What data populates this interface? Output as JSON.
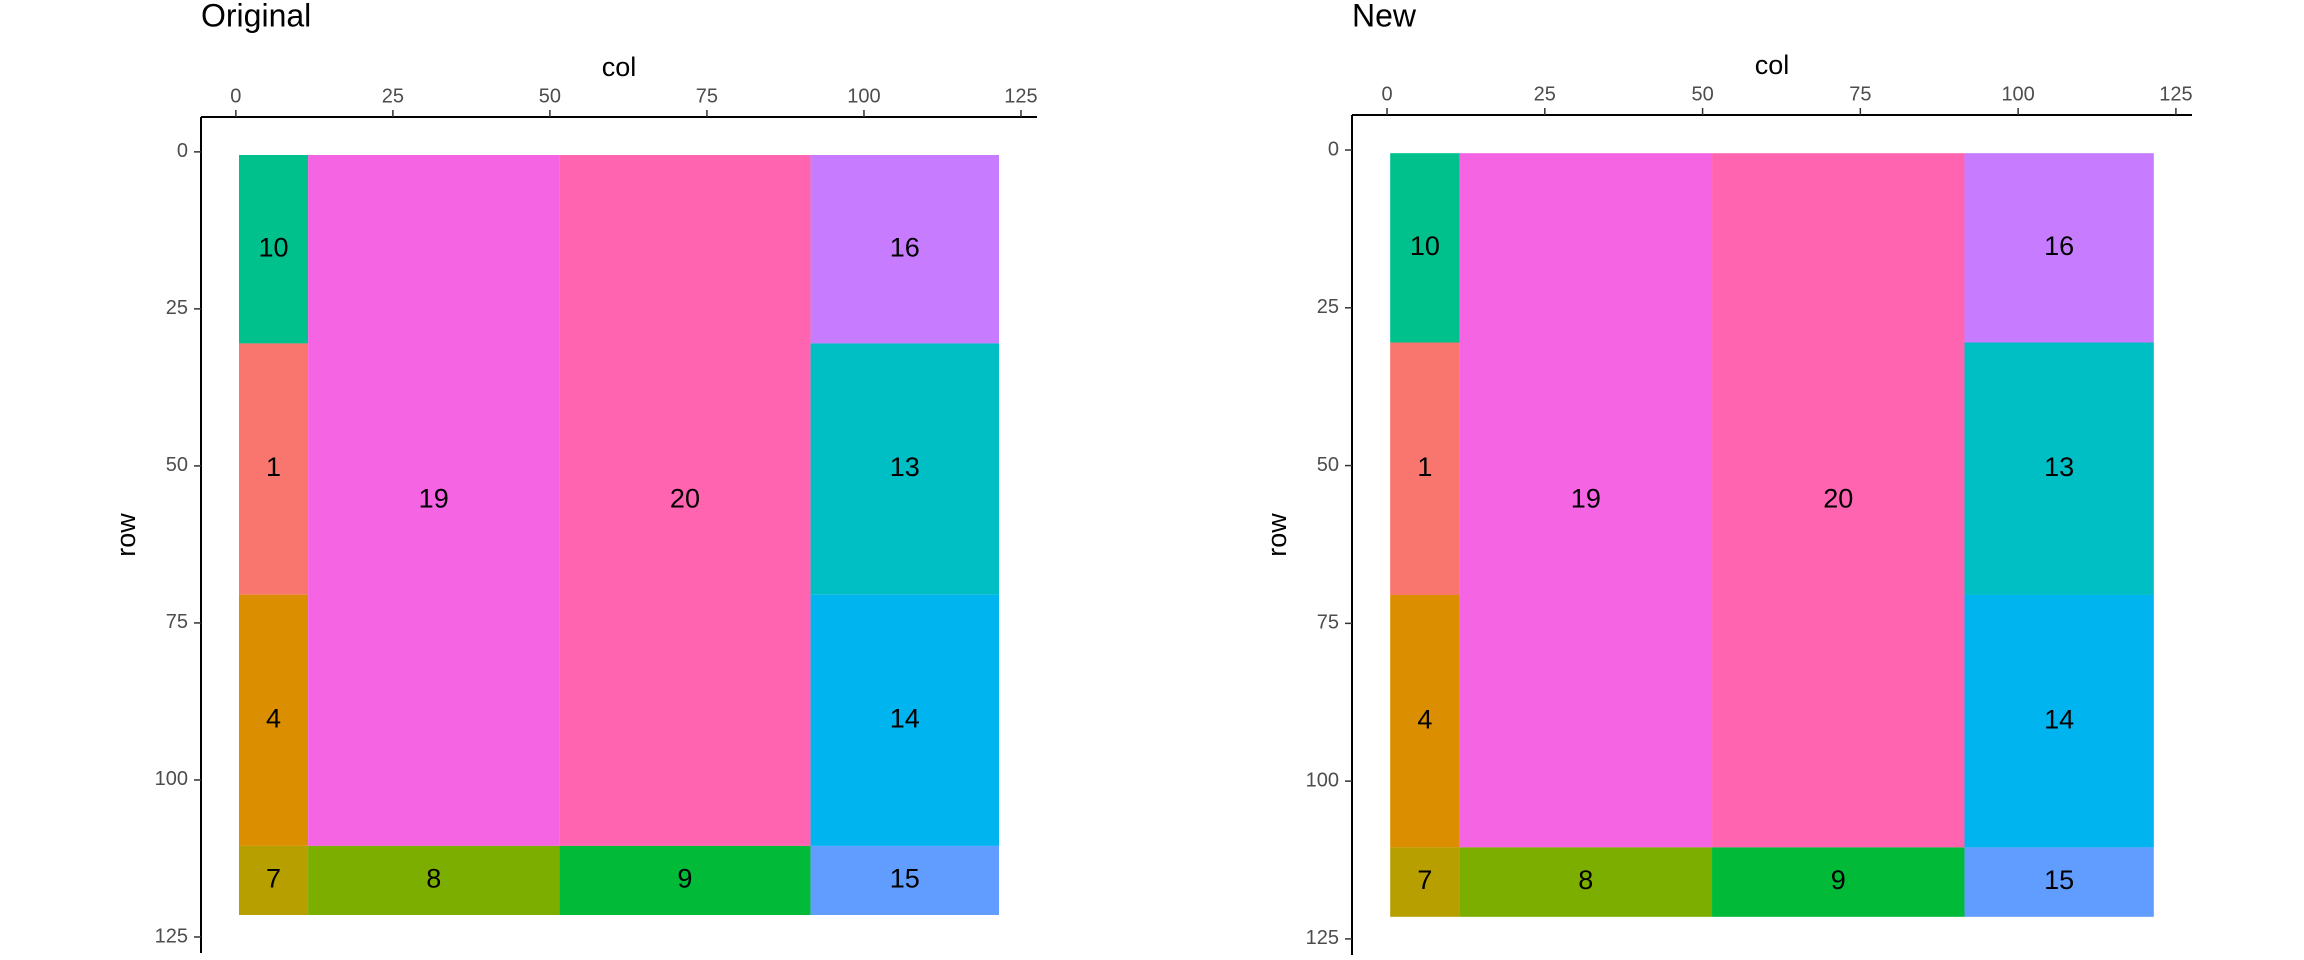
{
  "chart_data": [
    {
      "type": "tile",
      "title": "Original",
      "xlabel": "col",
      "ylabel": "row",
      "x_axis_position": "top",
      "y_reversed": true,
      "xlim": [
        -5.55,
        127.55
      ],
      "ylim": [
        -5.55,
        127.55
      ],
      "xticks": [
        0,
        25,
        50,
        75,
        100,
        125
      ],
      "yticks": [
        0,
        25,
        50,
        75,
        100,
        125
      ],
      "tiles": [
        {
          "label": 10,
          "xmin": 0.5,
          "xmax": 11.5,
          "ymin": 0.5,
          "ymax": 30.5,
          "color": "#00C08B"
        },
        {
          "label": 1,
          "xmin": 0.5,
          "xmax": 11.5,
          "ymin": 30.5,
          "ymax": 70.5,
          "color": "#F8766D"
        },
        {
          "label": 4,
          "xmin": 0.5,
          "xmax": 11.5,
          "ymin": 70.5,
          "ymax": 110.5,
          "color": "#DB8E00"
        },
        {
          "label": 7,
          "xmin": 0.5,
          "xmax": 11.5,
          "ymin": 110.5,
          "ymax": 121.5,
          "color": "#B79F00"
        },
        {
          "label": 19,
          "xmin": 11.5,
          "xmax": 51.5,
          "ymin": 0.5,
          "ymax": 110.5,
          "color": "#F564E3"
        },
        {
          "label": 20,
          "xmin": 51.5,
          "xmax": 91.5,
          "ymin": 0.5,
          "ymax": 110.5,
          "color": "#FF64B0"
        },
        {
          "label": 8,
          "xmin": 11.5,
          "xmax": 51.5,
          "ymin": 110.5,
          "ymax": 121.5,
          "color": "#7CAE00"
        },
        {
          "label": 9,
          "xmin": 51.5,
          "xmax": 91.5,
          "ymin": 110.5,
          "ymax": 121.5,
          "color": "#00BA38"
        },
        {
          "label": 16,
          "xmin": 91.5,
          "xmax": 121.5,
          "ymin": 0.5,
          "ymax": 30.5,
          "color": "#C77CFF"
        },
        {
          "label": 13,
          "xmin": 91.5,
          "xmax": 121.5,
          "ymin": 30.5,
          "ymax": 70.5,
          "color": "#00BFC4"
        },
        {
          "label": 14,
          "xmin": 91.5,
          "xmax": 121.5,
          "ymin": 70.5,
          "ymax": 110.5,
          "color": "#00B4EF"
        },
        {
          "label": 15,
          "xmin": 91.5,
          "xmax": 121.5,
          "ymin": 110.5,
          "ymax": 121.5,
          "color": "#619CFF"
        }
      ]
    },
    {
      "type": "tile",
      "title": "New",
      "xlabel": "col",
      "ylabel": "row",
      "x_axis_position": "top",
      "y_reversed": true,
      "xlim": [
        -5.55,
        127.55
      ],
      "ylim": [
        -5.55,
        127.55
      ],
      "xticks": [
        0,
        25,
        50,
        75,
        100,
        125
      ],
      "yticks": [
        0,
        25,
        50,
        75,
        100,
        125
      ],
      "tiles": [
        {
          "label": 10,
          "xmin": 0.5,
          "xmax": 11.5,
          "ymin": 0.5,
          "ymax": 30.5,
          "color": "#00C08B"
        },
        {
          "label": 1,
          "xmin": 0.5,
          "xmax": 11.5,
          "ymin": 30.5,
          "ymax": 70.5,
          "color": "#F8766D"
        },
        {
          "label": 4,
          "xmin": 0.5,
          "xmax": 11.5,
          "ymin": 70.5,
          "ymax": 110.5,
          "color": "#DB8E00"
        },
        {
          "label": 7,
          "xmin": 0.5,
          "xmax": 11.5,
          "ymin": 110.5,
          "ymax": 121.5,
          "color": "#B79F00"
        },
        {
          "label": 19,
          "xmin": 11.5,
          "xmax": 51.5,
          "ymin": 0.5,
          "ymax": 110.5,
          "color": "#F564E3"
        },
        {
          "label": 20,
          "xmin": 51.5,
          "xmax": 91.5,
          "ymin": 0.5,
          "ymax": 110.5,
          "color": "#FF64B0"
        },
        {
          "label": 8,
          "xmin": 11.5,
          "xmax": 51.5,
          "ymin": 110.5,
          "ymax": 121.5,
          "color": "#7CAE00"
        },
        {
          "label": 9,
          "xmin": 51.5,
          "xmax": 91.5,
          "ymin": 110.5,
          "ymax": 121.5,
          "color": "#00BA38"
        },
        {
          "label": 16,
          "xmin": 91.5,
          "xmax": 121.5,
          "ymin": 0.5,
          "ymax": 30.5,
          "color": "#C77CFF"
        },
        {
          "label": 13,
          "xmin": 91.5,
          "xmax": 121.5,
          "ymin": 30.5,
          "ymax": 70.5,
          "color": "#00BFC4"
        },
        {
          "label": 14,
          "xmin": 91.5,
          "xmax": 121.5,
          "ymin": 70.5,
          "ymax": 110.5,
          "color": "#00B4EF"
        },
        {
          "label": 15,
          "xmin": 91.5,
          "xmax": 121.5,
          "ymin": 110.5,
          "ymax": 121.5,
          "color": "#619CFF"
        }
      ]
    }
  ]
}
